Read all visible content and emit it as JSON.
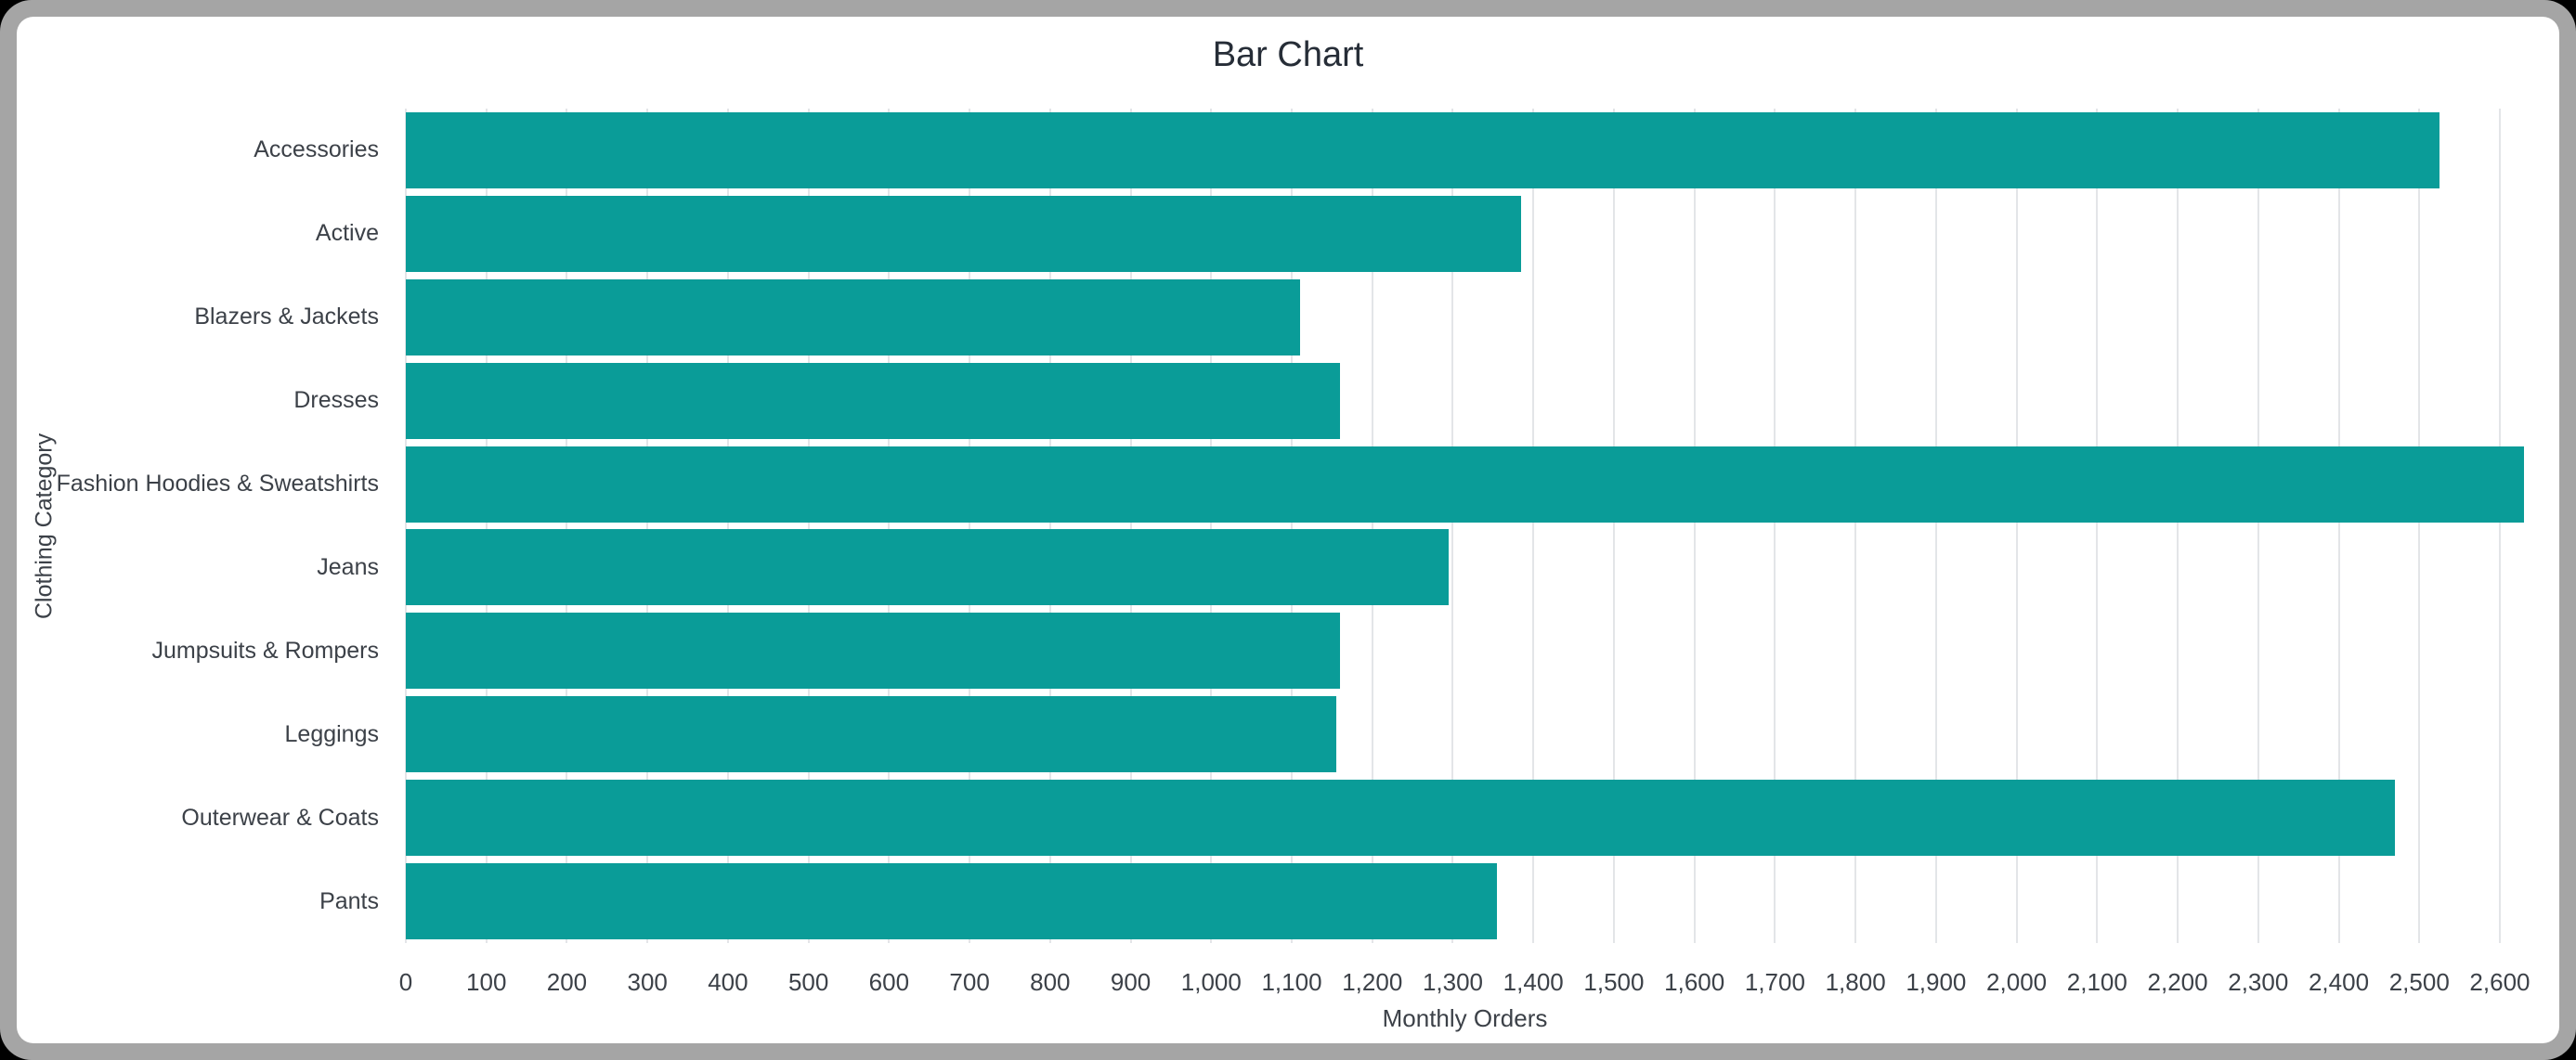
{
  "window": {
    "frame_color": "#a5a5a5",
    "background_color": "#ffffff"
  },
  "chart_data": {
    "type": "bar",
    "orientation": "horizontal",
    "title": "Bar Chart",
    "xlabel": "Monthly Orders",
    "ylabel": "Clothing Category",
    "categories": [
      "Accessories",
      "Active",
      "Blazers & Jackets",
      "Dresses",
      "Fashion Hoodies & Sweatshirts",
      "Jeans",
      "Jumpsuits & Rompers",
      "Leggings",
      "Outerwear & Coats",
      "Pants"
    ],
    "values": [
      2525,
      1385,
      1110,
      1160,
      2630,
      1295,
      1160,
      1155,
      2470,
      1355
    ],
    "xlim": [
      0,
      2630
    ],
    "x_ticks": [
      0,
      100,
      200,
      300,
      400,
      500,
      600,
      700,
      800,
      900,
      1000,
      1100,
      1200,
      1300,
      1400,
      1500,
      1600,
      1700,
      1800,
      1900,
      2000,
      2100,
      2200,
      2300,
      2400,
      2500,
      2600
    ],
    "x_tick_labels": [
      "0",
      "100",
      "200",
      "300",
      "400",
      "500",
      "600",
      "700",
      "800",
      "900",
      "1,000",
      "1,100",
      "1,200",
      "1,300",
      "1,400",
      "1,500",
      "1,600",
      "1,700",
      "1,800",
      "1,900",
      "2,000",
      "2,100",
      "2,200",
      "2,300",
      "2,400",
      "2,500",
      "2,600"
    ],
    "grid": "vertical",
    "legend": "none",
    "bar_color": "#0a9c98",
    "grid_color": "#e3e5e8",
    "text_color": "#3c4148",
    "title_color": "#262d37"
  }
}
